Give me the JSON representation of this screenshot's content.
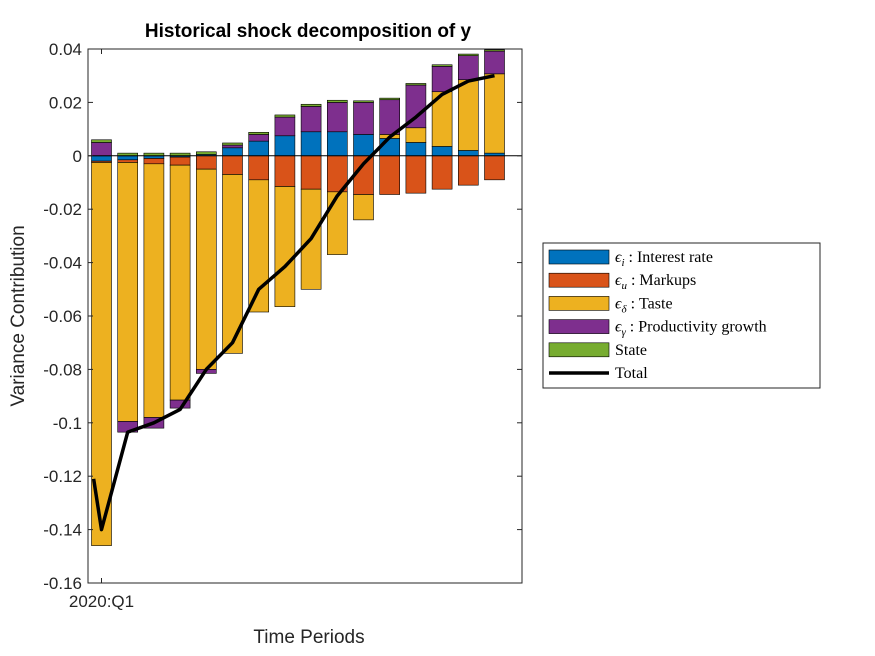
{
  "chart_data": {
    "type": "bar",
    "stacked": true,
    "title": "Historical shock decomposition of y",
    "xlabel": "Time Periods",
    "ylabel": "Variance Contribution",
    "ylim": [
      -0.16,
      0.04
    ],
    "yticks": [
      0.04,
      0.02,
      0,
      -0.02,
      -0.04,
      -0.06,
      -0.08,
      -0.1,
      -0.12,
      -0.14,
      -0.16
    ],
    "ytick_labels": [
      "0.04",
      "0.02",
      "0",
      "-0.02",
      "-0.04",
      "-0.06",
      "-0.08",
      "-0.1",
      "-0.12",
      "-0.14",
      "-0.16"
    ],
    "xtick_labels": [
      {
        "index": 0,
        "label": "2020:Q1"
      }
    ],
    "periods": 16,
    "grid": false,
    "legend_position": "outside-right",
    "series": [
      {
        "name_symbol": "ϵ",
        "name_sub": "i",
        "name_text": ": Interest rate",
        "color": "#0072BD",
        "values": [
          -0.002,
          -0.0015,
          -0.001,
          -0.0005,
          0.0005,
          0.003,
          0.0055,
          0.0075,
          0.009,
          0.009,
          0.008,
          0.0065,
          0.005,
          0.0035,
          0.002,
          0.001
        ]
      },
      {
        "name_symbol": "ϵ",
        "name_sub": "u",
        "name_text": ": Markups",
        "color": "#D95319",
        "values": [
          -0.0005,
          -0.001,
          -0.002,
          -0.003,
          -0.005,
          -0.007,
          -0.009,
          -0.0115,
          -0.0125,
          -0.0135,
          -0.0145,
          -0.0145,
          -0.014,
          -0.0125,
          -0.011,
          -0.009
        ]
      },
      {
        "name_symbol": "ϵ",
        "name_sub": "δ",
        "name_text": ": Taste",
        "color": "#EDB120",
        "values": [
          -0.1435,
          -0.097,
          -0.095,
          -0.088,
          -0.075,
          -0.067,
          -0.0495,
          -0.045,
          -0.0375,
          -0.0235,
          -0.0095,
          0.0015,
          0.0055,
          0.0205,
          0.0265,
          0.0297
        ]
      },
      {
        "name_symbol": "ϵ",
        "name_sub": "γ",
        "name_text": ": Productivity growth",
        "color": "#7E2F8E",
        "values": [
          0.005,
          -0.004,
          -0.004,
          -0.003,
          -0.0015,
          0.001,
          0.0025,
          0.007,
          0.0095,
          0.011,
          0.012,
          0.013,
          0.016,
          0.0095,
          0.009,
          0.0085
        ]
      },
      {
        "name": "State",
        "color": "#77AC30",
        "values": [
          0.001,
          0.001,
          0.001,
          0.001,
          0.001,
          0.0008,
          0.0008,
          0.0008,
          0.0008,
          0.0008,
          0.0006,
          0.0006,
          0.0006,
          0.0006,
          0.0006,
          0.0005
        ]
      }
    ],
    "total": {
      "name": "Total",
      "color": "#000000",
      "x": [
        -0.3,
        0,
        1,
        2,
        3,
        4,
        5,
        6,
        7,
        8,
        9,
        10,
        11,
        12,
        13,
        14,
        15
      ],
      "values": [
        -0.121,
        -0.14,
        -0.1035,
        -0.1,
        -0.095,
        -0.08,
        -0.07,
        -0.05,
        -0.0415,
        -0.031,
        -0.015,
        -0.003,
        0.007,
        0.0145,
        0.023,
        0.028,
        0.03
      ]
    }
  }
}
